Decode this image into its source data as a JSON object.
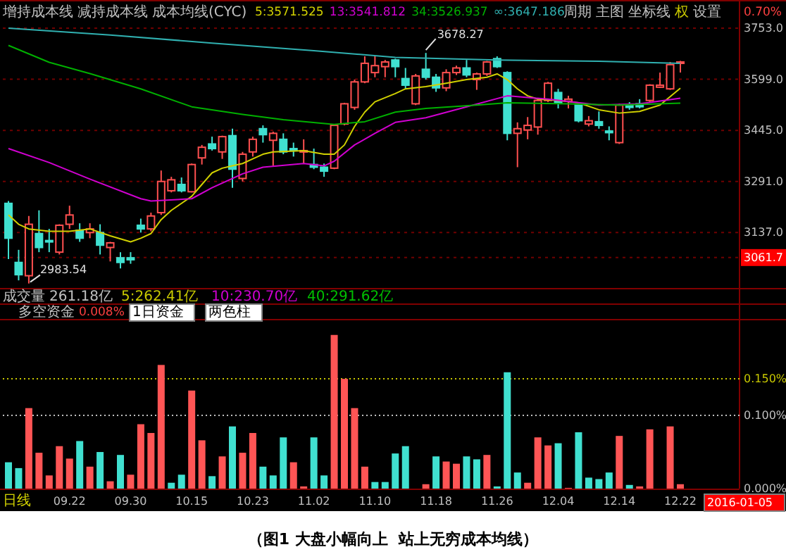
{
  "chart_data": [
    {
      "type": "candlestick",
      "categories": [
        null,
        null,
        null,
        null,
        null,
        null,
        "09.22",
        null,
        null,
        null,
        null,
        null,
        "09.30",
        null,
        null,
        null,
        null,
        null,
        "10.15",
        null,
        null,
        null,
        null,
        null,
        "10.23",
        null,
        null,
        null,
        null,
        null,
        "11.02",
        null,
        null,
        null,
        null,
        null,
        "11.10",
        null,
        null,
        null,
        null,
        null,
        "11.18",
        null,
        null,
        null,
        null,
        null,
        "11.26",
        null,
        null,
        null,
        null,
        null,
        "12.04",
        null,
        null,
        null,
        null,
        null,
        "12.14",
        null,
        null,
        null,
        null,
        null,
        "12.22"
      ],
      "ohlc": [
        [
          3225,
          3232,
          3057,
          3120
        ],
        [
          3047,
          3085,
          2993,
          3010
        ],
        [
          3007,
          3187,
          2983.54,
          3162
        ],
        [
          3134,
          3204,
          3078,
          3092
        ],
        [
          3113,
          3148,
          3078,
          3109
        ],
        [
          3078,
          3162,
          3071,
          3159
        ],
        [
          3162,
          3218,
          3148,
          3190
        ],
        [
          3144,
          3165,
          3109,
          3120
        ],
        [
          3137,
          3165,
          3120,
          3148
        ],
        [
          3137,
          3162,
          3071,
          3099
        ],
        [
          3092,
          3109,
          3050,
          3106
        ],
        [
          3061,
          3078,
          3029,
          3047
        ],
        [
          3061,
          3078,
          3043,
          3055
        ],
        [
          3159,
          3179,
          3137,
          3148
        ],
        [
          3148,
          3197,
          3141,
          3187
        ],
        [
          3197,
          3324,
          3190,
          3291
        ],
        [
          3263,
          3305,
          3258,
          3296
        ],
        [
          3282,
          3303,
          3258,
          3263
        ],
        [
          3260,
          3345,
          3258,
          3342
        ],
        [
          3362,
          3401,
          3342,
          3394
        ],
        [
          3404,
          3426,
          3384,
          3390
        ],
        [
          3380,
          3429,
          3359,
          3426
        ],
        [
          3429,
          3450,
          3272,
          3328
        ],
        [
          3300,
          3380,
          3291,
          3373
        ],
        [
          3380,
          3426,
          3366,
          3418
        ],
        [
          3450,
          3460,
          3408,
          3432
        ],
        [
          3415,
          3441,
          3338,
          3436
        ],
        [
          3418,
          3436,
          3373,
          3380
        ],
        [
          3390,
          3408,
          3366,
          3384
        ],
        [
          3381,
          3418,
          3345,
          3384
        ],
        [
          3342,
          3390,
          3328,
          3334
        ],
        [
          3334,
          3345,
          3305,
          3322
        ],
        [
          3331,
          3464,
          3328,
          3460
        ],
        [
          3464,
          3528,
          3460,
          3525
        ],
        [
          3514,
          3598,
          3507,
          3591
        ],
        [
          3591,
          3668,
          3587,
          3647
        ],
        [
          3619,
          3668,
          3605,
          3640
        ],
        [
          3637,
          3657,
          3605,
          3651
        ],
        [
          3657,
          3661,
          3605,
          3637
        ],
        [
          3601,
          3633,
          3570,
          3581
        ],
        [
          3525,
          3615,
          3521,
          3609
        ],
        [
          3629,
          3678.27,
          3598,
          3605
        ],
        [
          3605,
          3615,
          3561,
          3573
        ],
        [
          3573,
          3629,
          3563,
          3619
        ],
        [
          3619,
          3640,
          3612,
          3633
        ],
        [
          3633,
          3657,
          3605,
          3612
        ],
        [
          3598,
          3619,
          3567,
          3615
        ],
        [
          3615,
          3654,
          3609,
          3651
        ],
        [
          3661,
          3668,
          3633,
          3637
        ],
        [
          3619,
          3623,
          3415,
          3436
        ],
        [
          3436,
          3469,
          3334,
          3450
        ],
        [
          3446,
          3485,
          3418,
          3460
        ],
        [
          3455,
          3539,
          3432,
          3535
        ],
        [
          3535,
          3591,
          3530,
          3587
        ],
        [
          3559,
          3570,
          3511,
          3528
        ],
        [
          3533,
          3549,
          3511,
          3539
        ],
        [
          3521,
          3525,
          3469,
          3474
        ],
        [
          3464,
          3488,
          3457,
          3474
        ],
        [
          3471,
          3502,
          3450,
          3460
        ],
        [
          3443,
          3457,
          3415,
          3438
        ],
        [
          3408,
          3525,
          3404,
          3521
        ],
        [
          3521,
          3530,
          3507,
          3514
        ],
        [
          3525,
          3539,
          3511,
          3516
        ],
        [
          3535,
          3584,
          3530,
          3581
        ],
        [
          3575,
          3619,
          3573,
          3581
        ],
        [
          3570,
          3651,
          3567,
          3643
        ],
        [
          3649,
          3654,
          3619,
          3651
        ]
      ],
      "series": [
        {
          "type": "line",
          "name": "5:3571.525",
          "color": "#d0d000",
          "values": [
            3190,
            3162,
            3148,
            null,
            3141,
            null,
            3141,
            null,
            3148,
            null,
            3127,
            null,
            3109,
            3120,
            3134,
            3176,
            3204,
            null,
            3246,
            3282,
            3317,
            3331,
            3338,
            3345,
            3359,
            3373,
            3380,
            null,
            null,
            3384,
            null,
            3373,
            3373,
            3401,
            3457,
            3500,
            3531,
            null,
            3556,
            3570,
            null,
            3577,
            null,
            3587,
            null,
            3598,
            null,
            3605,
            3615,
            3598,
            3570,
            3549,
            3539,
            null,
            3535,
            null,
            3528,
            null,
            3507,
            null,
            3497,
            null,
            3502,
            null,
            3521,
            null,
            3572
          ]
        },
        {
          "type": "line",
          "name": "13:3541.812",
          "color": "#d000d0",
          "values": [
            3390,
            null,
            null,
            null,
            3348,
            null,
            null,
            null,
            3298,
            null,
            null,
            null,
            null,
            3239,
            3232,
            null,
            null,
            null,
            3239,
            null,
            3272,
            null,
            null,
            3314,
            null,
            3334,
            null,
            null,
            null,
            3345,
            null,
            3338,
            3352,
            null,
            3401,
            null,
            3436,
            null,
            3469,
            null,
            null,
            3483,
            null,
            null,
            null,
            3516,
            null,
            null,
            null,
            3549,
            null,
            null,
            null,
            3539,
            null,
            null,
            null,
            null,
            3521,
            null,
            null,
            null,
            3525,
            null,
            null,
            null,
            3542
          ]
        },
        {
          "type": "line",
          "name": "34:3526.937",
          "color": "#00b000",
          "values": [
            3701,
            null,
            null,
            null,
            3650,
            null,
            null,
            null,
            3616,
            null,
            null,
            null,
            null,
            3570,
            null,
            null,
            null,
            null,
            3516,
            null,
            null,
            null,
            null,
            3493,
            null,
            null,
            null,
            3477,
            null,
            null,
            null,
            null,
            3463,
            null,
            null,
            3471,
            null,
            null,
            3500,
            null,
            null,
            3511,
            null,
            null,
            null,
            null,
            3521,
            null,
            null,
            3528,
            null,
            null,
            null,
            null,
            null,
            3525,
            null,
            null,
            null,
            null,
            3521,
            null,
            null,
            null,
            null,
            null,
            3527
          ]
        },
        {
          "type": "line",
          "name": "∞:3647.186",
          "color": "#30b0b0",
          "values": [
            3753,
            null,
            null,
            null,
            null,
            null,
            null,
            null,
            null,
            null,
            3732,
            null,
            null,
            null,
            null,
            null,
            null,
            null,
            null,
            null,
            3708,
            null,
            null,
            null,
            null,
            null,
            null,
            null,
            null,
            null,
            3685,
            null,
            null,
            null,
            null,
            null,
            null,
            null,
            3665,
            null,
            null,
            null,
            null,
            null,
            null,
            null,
            null,
            null,
            3657,
            null,
            null,
            null,
            null,
            null,
            null,
            null,
            null,
            null,
            3653,
            null,
            null,
            null,
            null,
            null,
            null,
            null,
            3647
          ]
        }
      ],
      "ylim": [
        2968,
        3825
      ],
      "yticks": [
        {
          "value": 3753,
          "label": "3753.0"
        },
        {
          "value": 3599,
          "label": "3599.0"
        },
        {
          "value": 3445,
          "label": "3445.0"
        },
        {
          "value": 3291,
          "label": "3291.0"
        },
        {
          "value": 3137,
          "label": "3137.0"
        },
        {
          "value": 3061.7,
          "label": "3061.7"
        }
      ],
      "grid": "y",
      "legend": "top",
      "tick_labels": "y",
      "annotations": [
        "增持成本线",
        "减持成本线",
        "成本均线(CYC)",
        "周期",
        "主图",
        "坐标线",
        "权",
        "设置",
        "0.70%",
        {
          "text": "3678.27",
          "y": 3678.27
        },
        "2983.54"
      ]
    },
    {
      "type": "bar",
      "categories": [
        null,
        null,
        null,
        null,
        null,
        null,
        "09.22",
        null,
        null,
        null,
        null,
        null,
        "09.30",
        null,
        null,
        null,
        null,
        null,
        "10.15",
        null,
        null,
        null,
        null,
        null,
        "10.23",
        null,
        null,
        null,
        null,
        null,
        "11.02",
        null,
        null,
        null,
        null,
        null,
        "11.10",
        null,
        null,
        null,
        null,
        null,
        "11.18",
        null,
        null,
        null,
        null,
        null,
        "11.26",
        null,
        null,
        null,
        null,
        null,
        "12.04",
        null,
        null,
        null,
        null,
        null,
        "12.14",
        null,
        null,
        null,
        null,
        null,
        "12.22"
      ],
      "values": [
        0.036,
        0.028,
        0.11,
        0.049,
        0.018,
        0.058,
        0.041,
        0.065,
        0.03,
        0.05,
        0.01,
        0.046,
        0.019,
        0.088,
        0.076,
        0.169,
        0.008,
        0.019,
        0.134,
        0.066,
        0.017,
        0.044,
        0.085,
        0.049,
        0.076,
        0.03,
        0.018,
        0.07,
        0.036,
        0.003,
        0.07,
        0.018,
        0.21,
        0.15,
        0.11,
        0.03,
        0.009,
        0.009,
        0.048,
        0.058,
        0,
        0.006,
        0.044,
        0.037,
        0.034,
        0.044,
        0.04,
        0.046,
        0.003,
        0.159,
        0.022,
        0.008,
        0.07,
        0.059,
        0.062,
        0.001,
        0.077,
        0.015,
        0.013,
        0.022,
        0.072,
        0.005,
        0.003,
        0.081,
        0,
        0.085,
        0.006
      ],
      "colors": [
        "#40e0d0",
        "#40e0d0",
        "#ff5555",
        "#ff5555",
        "#ff5555",
        "#ff5555",
        "#ff5555",
        "#40e0d0",
        "#ff5555",
        "#40e0d0",
        "#ff5555",
        "#40e0d0",
        "#ff5555",
        "#ff5555",
        "#ff5555",
        "#ff5555",
        "#40e0d0",
        "#40e0d0",
        "#ff5555",
        "#ff5555",
        "#40e0d0",
        "#ff5555",
        "#40e0d0",
        "#ff5555",
        "#ff5555",
        "#40e0d0",
        "#40e0d0",
        "#40e0d0",
        "#ff5555",
        "#ff5555",
        "#40e0d0",
        "#40e0d0",
        "#ff5555",
        "#ff5555",
        "#ff5555",
        "#ff5555",
        "#40e0d0",
        "#40e0d0",
        "#40e0d0",
        "#40e0d0",
        "#ff5555",
        "#ff5555",
        "#40e0d0",
        "#ff5555",
        "#ff5555",
        "#40e0d0",
        "#40e0d0",
        "#ff5555",
        "#40e0d0",
        "#40e0d0",
        "#40e0d0",
        "#ff5555",
        "#ff5555",
        "#ff5555",
        "#40e0d0",
        "#ff5555",
        "#40e0d0",
        "#40e0d0",
        "#40e0d0",
        "#40e0d0",
        "#ff5555",
        "#40e0d0",
        "#ff5555",
        "#ff5555",
        "#ff5555",
        "#ff5555",
        "#ff5555"
      ],
      "ylim": [
        0,
        0.229
      ],
      "yticks": [
        {
          "value": 0.15,
          "label": "0.150%"
        },
        {
          "value": 0.1,
          "label": "0.100%"
        },
        {
          "value": 0,
          "label": "0.000%"
        }
      ],
      "ref_lines": [
        {
          "axis": "y",
          "value": 0.15,
          "color": "#c8c800",
          "line_style": "dotted"
        },
        {
          "axis": "y",
          "value": 0.1,
          "color": "#c0c0c0",
          "line_style": "dotted"
        }
      ],
      "annotations": [
        "成交量",
        "261.18亿",
        "5:262.41亿",
        "10:230.70亿",
        "40:291.62亿",
        "多空资金",
        "0.008%",
        "1日资金",
        "两色柱",
        "日线",
        "2016-01-05",
        "（图1 大盘小幅向上  站上无穷成本均线）"
      ]
    }
  ]
}
